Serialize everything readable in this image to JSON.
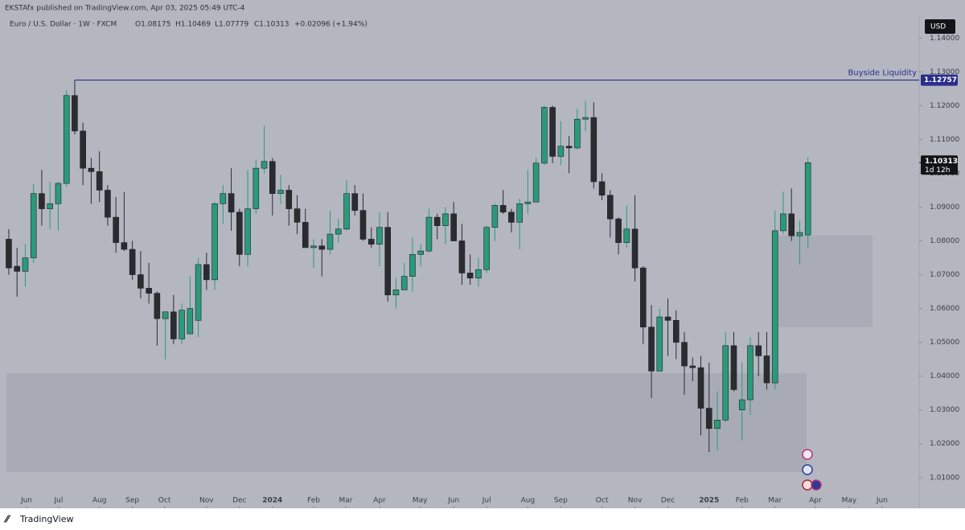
{
  "publisher": "EKSTAfx published on TradingView.com, Apr 03, 2025 05:49 UTC-4",
  "footer": "TradingView",
  "chart_data": {
    "type": "candlestick",
    "title": "Euro / U.S. Dollar · 1W · FXCM",
    "legend_text": {
      "open": "O1.08175",
      "high": "H1.10469",
      "low": "L1.07779",
      "close": "C1.10313",
      "change": "+0.02096 (+1.94%)"
    },
    "currency": "USD",
    "countdown": "1d 12h",
    "up_color": "#2b9a7b",
    "down_color": "#2b2c30",
    "open": [
      1.0805,
      1.0725,
      1.071,
      1.075,
      1.094,
      1.0895,
      1.091,
      1.097,
      1.123,
      1.1125,
      1.1015,
      1.1005,
      1.095,
      1.087,
      1.0795,
      1.0775,
      1.07,
      1.066,
      1.0645,
      1.057,
      1.059,
      1.051,
      1.0525,
      1.0565,
      1.073,
      1.0685,
      1.091,
      1.094,
      1.0885,
      1.076,
      1.0895,
      1.1015,
      1.1035,
      1.094,
      1.095,
      1.0895,
      1.0855,
      1.078,
      1.0785,
      1.0775,
      1.082,
      1.0835,
      1.094,
      1.089,
      1.0805,
      1.079,
      1.084,
      1.064,
      1.0655,
      1.0695,
      1.076,
      1.077,
      1.087,
      1.0845,
      1.088,
      1.08,
      1.0705,
      1.069,
      1.0715,
      1.084,
      1.0905,
      1.0885,
      1.0855,
      1.091,
      1.0915,
      1.103,
      1.1195,
      1.105,
      1.108,
      1.1075,
      1.116,
      1.1165,
      1.0975,
      1.0935,
      1.0865,
      1.0795,
      1.0835,
      1.072,
      1.0545,
      1.0415,
      1.0575,
      1.0565,
      1.05,
      1.043,
      1.0425,
      1.0305,
      1.0245,
      1.027,
      1.049,
      1.03,
      1.033,
      1.049,
      1.046,
      1.038,
      1.083,
      1.088,
      1.0815,
      1.08175
    ],
    "high": [
      1.0835,
      1.078,
      1.079,
      1.097,
      1.101,
      1.0975,
      1.0975,
      1.1245,
      1.12757,
      1.115,
      1.1045,
      1.1065,
      1.0965,
      1.093,
      1.0945,
      1.08,
      1.077,
      1.0735,
      1.065,
      1.059,
      1.064,
      1.0615,
      1.0695,
      1.075,
      1.0765,
      1.0915,
      1.0965,
      1.1015,
      1.0895,
      1.101,
      1.104,
      1.114,
      1.1045,
      1.0995,
      1.0965,
      1.0935,
      1.0895,
      1.0805,
      1.0805,
      1.089,
      1.0865,
      1.098,
      1.0965,
      1.094,
      1.084,
      1.0885,
      1.0885,
      1.069,
      1.0735,
      1.081,
      1.079,
      1.0895,
      1.088,
      1.09,
      1.0915,
      1.085,
      1.076,
      1.075,
      1.0845,
      1.091,
      1.095,
      1.0895,
      1.0925,
      1.101,
      1.1045,
      1.12,
      1.12,
      1.1155,
      1.111,
      1.119,
      1.1215,
      1.121,
      1.1,
      1.095,
      1.087,
      1.0905,
      1.0935,
      1.0725,
      1.061,
      1.06,
      1.063,
      1.0595,
      1.053,
      1.0455,
      1.046,
      1.044,
      1.0355,
      1.053,
      1.053,
      1.044,
      1.0515,
      1.053,
      1.053,
      1.089,
      1.0945,
      1.0955,
      1.086,
      1.10469
    ],
    "low": [
      1.07,
      1.0635,
      1.0665,
      1.0735,
      1.0845,
      1.0835,
      1.083,
      1.096,
      1.1115,
      1.0965,
      1.091,
      1.0915,
      1.0845,
      1.0765,
      1.077,
      1.0685,
      1.063,
      1.0615,
      1.049,
      1.045,
      1.0495,
      1.0495,
      1.0525,
      1.0515,
      1.0655,
      1.0655,
      1.085,
      1.083,
      1.0725,
      1.0725,
      1.088,
      1.1,
      1.0875,
      1.091,
      1.0845,
      1.082,
      1.078,
      1.072,
      1.0695,
      1.076,
      1.0795,
      1.083,
      1.0875,
      1.08,
      1.078,
      1.0725,
      1.062,
      1.06,
      1.0655,
      1.065,
      1.0725,
      1.0765,
      1.0805,
      1.079,
      1.08,
      1.067,
      1.067,
      1.0665,
      1.0705,
      1.08,
      1.088,
      1.0825,
      1.0775,
      1.088,
      1.0915,
      1.1025,
      1.103,
      1.1025,
      1.1,
      1.107,
      1.1125,
      1.0955,
      1.092,
      1.081,
      1.076,
      1.078,
      1.068,
      1.0495,
      1.0335,
      1.0425,
      1.046,
      1.045,
      1.0345,
      1.0385,
      1.0225,
      1.0175,
      1.018,
      1.0265,
      1.0355,
      1.021,
      1.0285,
      1.04,
      1.036,
      1.036,
      1.082,
      1.08,
      1.073,
      1.07779
    ],
    "close": [
      1.072,
      1.071,
      1.075,
      1.094,
      1.0895,
      1.091,
      1.097,
      1.123,
      1.1125,
      1.1015,
      1.1005,
      1.095,
      1.087,
      1.0795,
      1.0775,
      1.07,
      1.066,
      1.0645,
      1.057,
      1.059,
      1.051,
      1.0595,
      1.06,
      1.073,
      1.0685,
      1.091,
      1.094,
      1.0885,
      1.076,
      1.0895,
      1.1015,
      1.1035,
      1.094,
      1.095,
      1.0895,
      1.0855,
      1.078,
      1.0785,
      1.0775,
      1.082,
      1.0835,
      1.094,
      1.089,
      1.0805,
      1.079,
      1.084,
      1.064,
      1.0655,
      1.0695,
      1.076,
      1.077,
      1.087,
      1.0845,
      1.088,
      1.08,
      1.0705,
      1.069,
      1.0715,
      1.084,
      1.0905,
      1.0885,
      1.0855,
      1.091,
      1.0915,
      1.103,
      1.1195,
      1.105,
      1.108,
      1.1075,
      1.116,
      1.1165,
      1.0975,
      1.0935,
      1.0865,
      1.0795,
      1.0835,
      1.072,
      1.0545,
      1.0415,
      1.0575,
      1.0565,
      1.05,
      1.043,
      1.0425,
      1.0305,
      1.0245,
      1.027,
      1.049,
      1.036,
      1.033,
      1.049,
      1.046,
      1.038,
      1.083,
      1.088,
      1.0815,
      1.0825,
      1.10313
    ],
    "xlim": [
      -1.07,
      110.5
    ],
    "xticks": [
      {
        "value": 2.15,
        "label": "Jun"
      },
      {
        "value": 6.05,
        "label": "Jul"
      },
      {
        "value": 11.0,
        "label": "Aug"
      },
      {
        "value": 15.0,
        "label": "Sep"
      },
      {
        "value": 18.9,
        "label": "Oct"
      },
      {
        "value": 24.0,
        "label": "Nov"
      },
      {
        "value": 28.0,
        "label": "Dec"
      },
      {
        "value": 32.0,
        "label": "2024"
      },
      {
        "value": 37.0,
        "label": "Feb"
      },
      {
        "value": 40.9,
        "label": "Mar"
      },
      {
        "value": 45.0,
        "label": "Apr"
      },
      {
        "value": 49.9,
        "label": "May"
      },
      {
        "value": 54.0,
        "label": "Jun"
      },
      {
        "value": 58.0,
        "label": "Jul"
      },
      {
        "value": 63.0,
        "label": "Aug"
      },
      {
        "value": 67.0,
        "label": "Sep"
      },
      {
        "value": 72.0,
        "label": "Oct"
      },
      {
        "value": 76.0,
        "label": "Nov"
      },
      {
        "value": 80.0,
        "label": "Dec"
      },
      {
        "value": 85.0,
        "label": "2025"
      },
      {
        "value": 89.0,
        "label": "Feb"
      },
      {
        "value": 93.0,
        "label": "Mar"
      },
      {
        "value": 97.9,
        "label": "Apr"
      },
      {
        "value": 102.0,
        "label": "May"
      },
      {
        "value": 106.0,
        "label": "Jun"
      }
    ],
    "ylim": [
      1.0009,
      1.1465
    ],
    "yticks": [
      {
        "value": 1.01,
        "label": "1.01000"
      },
      {
        "value": 1.02,
        "label": "1.02000"
      },
      {
        "value": 1.03,
        "label": "1.03000"
      },
      {
        "value": 1.04,
        "label": "1.04000"
      },
      {
        "value": 1.05,
        "label": "1.05000"
      },
      {
        "value": 1.06,
        "label": "1.06000"
      },
      {
        "value": 1.07,
        "label": "1.07000"
      },
      {
        "value": 1.08,
        "label": "1.08000"
      },
      {
        "value": 1.09,
        "label": "1.09000"
      },
      {
        "value": 1.1,
        "label": "1.10000"
      },
      {
        "value": 1.11,
        "label": "1.11000"
      },
      {
        "value": 1.12,
        "label": "1.12000"
      },
      {
        "value": 1.13,
        "label": "1.13000"
      },
      {
        "value": 1.14,
        "label": "1.14000"
      }
    ],
    "annotation": {
      "text": "Buyside Liquidity",
      "level": 1.12757,
      "color": "#2a2d8c"
    },
    "last_price": 1.10313
  }
}
